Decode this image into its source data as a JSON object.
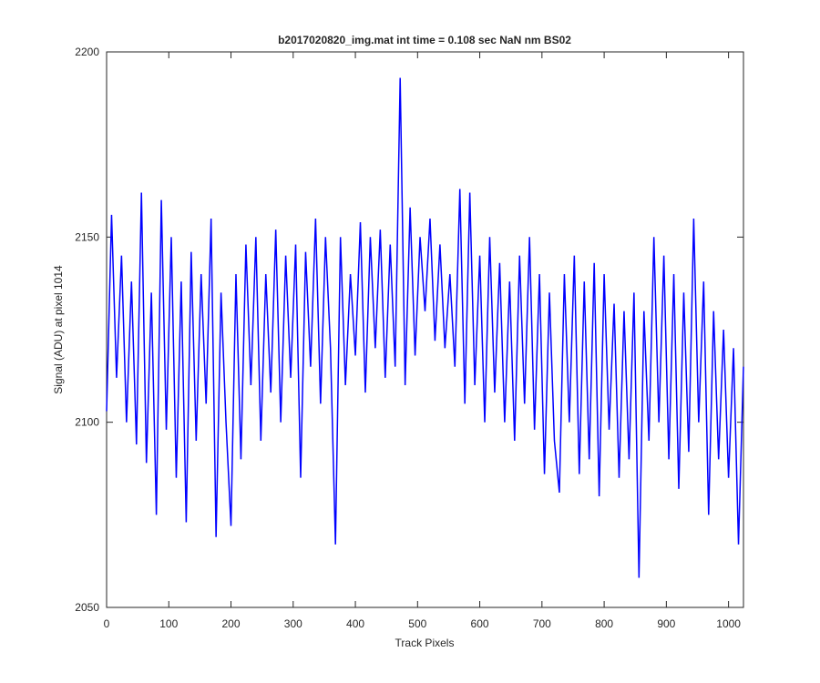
{
  "chart_data": {
    "type": "line",
    "title": "b2017020820_img.mat int time = 0.108 sec  NaN nm BS02",
    "x_label": "Track Pixels",
    "y_label": "Signal (ADU) at pixel 1014",
    "xlim": [
      0,
      1024
    ],
    "ylim": [
      2050,
      2200
    ],
    "xticks": [
      0,
      100,
      200,
      300,
      400,
      500,
      600,
      700,
      800,
      900,
      1000
    ],
    "yticks": [
      2050,
      2100,
      2150,
      2200
    ],
    "grid": false,
    "x": [
      0,
      8,
      16,
      24,
      32,
      40,
      48,
      56,
      64,
      72,
      80,
      88,
      96,
      104,
      112,
      120,
      128,
      136,
      144,
      152,
      160,
      168,
      176,
      184,
      192,
      200,
      208,
      216,
      224,
      232,
      240,
      248,
      256,
      264,
      272,
      280,
      288,
      296,
      304,
      312,
      320,
      328,
      336,
      344,
      352,
      360,
      368,
      376,
      384,
      392,
      400,
      408,
      416,
      424,
      432,
      440,
      448,
      456,
      464,
      472,
      480,
      488,
      496,
      504,
      512,
      520,
      528,
      536,
      544,
      552,
      560,
      568,
      576,
      584,
      592,
      600,
      608,
      616,
      624,
      632,
      640,
      648,
      656,
      664,
      672,
      680,
      688,
      696,
      704,
      712,
      720,
      728,
      736,
      744,
      752,
      760,
      768,
      776,
      784,
      792,
      800,
      808,
      816,
      824,
      832,
      840,
      848,
      856,
      864,
      872,
      880,
      888,
      896,
      904,
      912,
      920,
      928,
      936,
      944,
      952,
      960,
      968,
      976,
      984,
      992,
      1000,
      1008,
      1016,
      1024
    ],
    "series": [
      {
        "color": "#0000ff",
        "values": [
          2103,
          2156,
          2112,
          2145,
          2100,
          2138,
          2094,
          2162,
          2089,
          2135,
          2075,
          2160,
          2098,
          2150,
          2085,
          2138,
          2073,
          2146,
          2095,
          2140,
          2105,
          2155,
          2069,
          2135,
          2100,
          2072,
          2140,
          2090,
          2148,
          2110,
          2150,
          2095,
          2140,
          2108,
          2152,
          2100,
          2145,
          2112,
          2148,
          2085,
          2146,
          2115,
          2155,
          2105,
          2150,
          2120,
          2067,
          2150,
          2110,
          2140,
          2118,
          2154,
          2108,
          2150,
          2120,
          2152,
          2112,
          2148,
          2115,
          2193,
          2110,
          2158,
          2118,
          2150,
          2130,
          2155,
          2122,
          2148,
          2120,
          2140,
          2115,
          2163,
          2105,
          2162,
          2110,
          2145,
          2100,
          2150,
          2108,
          2143,
          2100,
          2138,
          2095,
          2145,
          2105,
          2150,
          2098,
          2140,
          2086,
          2135,
          2095,
          2081,
          2140,
          2100,
          2145,
          2086,
          2138,
          2090,
          2143,
          2080,
          2140,
          2098,
          2132,
          2085,
          2130,
          2090,
          2135,
          2058,
          2130,
          2095,
          2150,
          2100,
          2145,
          2090,
          2140,
          2082,
          2135,
          2092,
          2155,
          2100,
          2138,
          2075,
          2130,
          2090,
          2125,
          2085,
          2120,
          2067,
          2115
        ]
      }
    ]
  }
}
